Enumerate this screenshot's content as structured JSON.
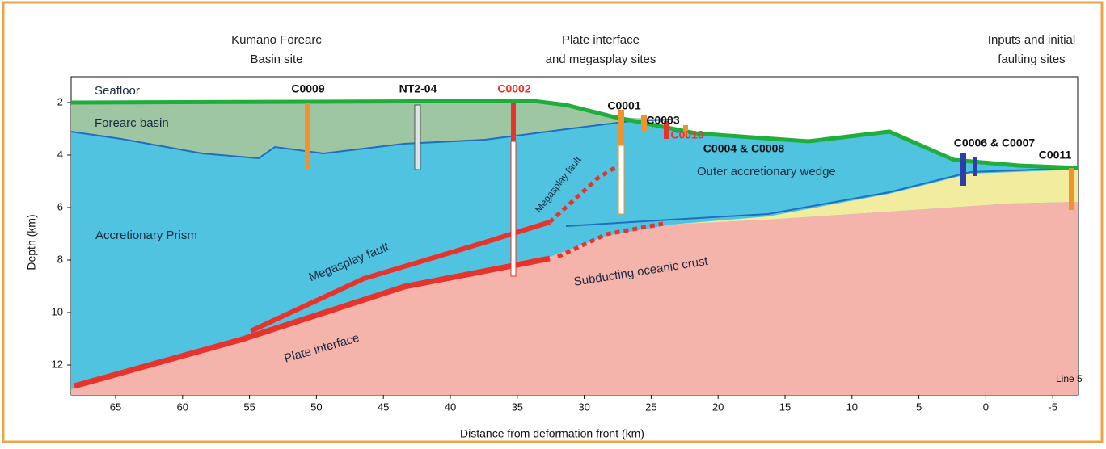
{
  "site_groups": [
    [
      "Kumano Forearc",
      "Basin site"
    ],
    [
      "Plate interface",
      "and megasplay sites"
    ],
    [
      "Inputs and initial",
      "faulting sites"
    ]
  ],
  "sites": [
    "C0009",
    "NT2-04",
    "C0002",
    "C0001",
    "C0003",
    "C0010",
    "C0004 & C0008",
    "C0006 & C0007",
    "C0011"
  ],
  "units": {
    "seafloor": "Seafloor",
    "forearc_basin": "Forearc basin",
    "prism": "Accretionary Prism",
    "outer_wedge": "Outer accretionary wedge",
    "crust": "Subducting oceanic crust",
    "megasplay_1": "Megasplay fault",
    "megasplay_2": "Megasplay fault",
    "plate_interface": "Plate interface"
  },
  "line_label": "Line 5",
  "axes": {
    "y_label": "Depth (km)",
    "y_ticks": [
      2,
      4,
      6,
      8,
      10,
      12
    ],
    "x_label": "Distance from deformation front (km)",
    "x_ticks": [
      65,
      60,
      55,
      50,
      45,
      40,
      35,
      30,
      25,
      20,
      15,
      10,
      5,
      0,
      -5
    ]
  }
}
